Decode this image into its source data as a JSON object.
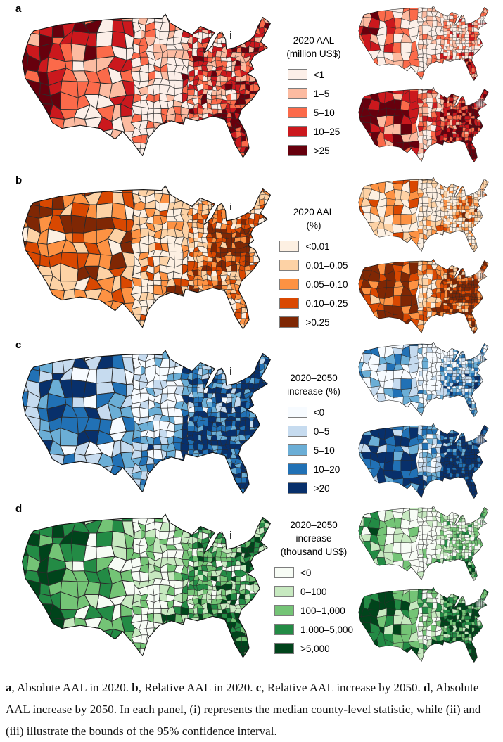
{
  "figure": {
    "panels": [
      {
        "letter": "a",
        "map_labels": [
          "i",
          "ii",
          "iii"
        ],
        "legend": {
          "title_lines": [
            "2020 AAL",
            "(million US$)"
          ],
          "classes": [
            {
              "label": "<1",
              "color": "#fcefe8"
            },
            {
              "label": "1–5",
              "color": "#fcbba1"
            },
            {
              "label": "5–10",
              "color": "#fb6a4a"
            },
            {
              "label": "10–25",
              "color": "#cb181d"
            },
            {
              "label": ">25",
              "color": "#67000d"
            }
          ]
        }
      },
      {
        "letter": "b",
        "map_labels": [
          "i",
          "ii",
          "iii"
        ],
        "legend": {
          "title_lines": [
            "2020 AAL",
            "(%)"
          ],
          "classes": [
            {
              "label": "<0.01",
              "color": "#fdf0e2"
            },
            {
              "label": "0.01–0.05",
              "color": "#fdd2a5"
            },
            {
              "label": "0.05–0.10",
              "color": "#fd9243"
            },
            {
              "label": "0.10–0.25",
              "color": "#d94801"
            },
            {
              "label": ">0.25",
              "color": "#7f2704"
            }
          ]
        }
      },
      {
        "letter": "c",
        "map_labels": [
          "i",
          "ii",
          "iii"
        ],
        "legend": {
          "title_lines": [
            "2020–2050",
            "increase (%)"
          ],
          "classes": [
            {
              "label": "<0",
              "color": "#f7fbff"
            },
            {
              "label": "0–5",
              "color": "#c6dbef"
            },
            {
              "label": "5–10",
              "color": "#6baed6"
            },
            {
              "label": "10–20",
              "color": "#2171b5"
            },
            {
              "label": ">20",
              "color": "#08306b"
            }
          ]
        }
      },
      {
        "letter": "d",
        "map_labels": [
          "i",
          "ii",
          "iii"
        ],
        "legend": {
          "title_lines": [
            "2020–2050",
            "increase",
            "(thousand US$)"
          ],
          "classes": [
            {
              "label": "<0",
              "color": "#f7fcf5"
            },
            {
              "label": "0–100",
              "color": "#c7e9c0"
            },
            {
              "label": "100–1,000",
              "color": "#74c476"
            },
            {
              "label": "1,000–5,000",
              "color": "#238b45"
            },
            {
              "label": ">5,000",
              "color": "#00441b"
            }
          ]
        }
      }
    ],
    "caption": [
      {
        "text": "a",
        "bold": true
      },
      {
        "text": ", Absolute AAL in 2020. ",
        "bold": false
      },
      {
        "text": "b",
        "bold": true
      },
      {
        "text": ", Relative AAL in 2020. ",
        "bold": false
      },
      {
        "text": "c",
        "bold": true
      },
      {
        "text": ", Relative AAL increase by 2050. ",
        "bold": false
      },
      {
        "text": "d",
        "bold": true
      },
      {
        "text": ", Absolute AAL increase by 2050. In each panel, (i) represents the median county-level statistic, while (ii) and (iii) illustrate the bounds of the 95% confidence interval.",
        "bold": false
      }
    ]
  },
  "chart_data": [
    {
      "type": "heatmap",
      "subtype": "choropleth_map",
      "panel": "a",
      "title": "2020 AAL (million US$)",
      "region": "Contiguous United States, county level",
      "classes": [
        "<1",
        "1–5",
        "5–10",
        "10–25",
        ">25"
      ],
      "colors": [
        "#fcefe8",
        "#fcbba1",
        "#fb6a4a",
        "#cb181d",
        "#67000d"
      ],
      "legend_position": "center-right of main map",
      "subpanels": [
        {
          "label": "i",
          "meaning": "median county-level statistic"
        },
        {
          "label": "ii",
          "meaning": "bound of the 95% confidence interval"
        },
        {
          "label": "iii",
          "meaning": "bound of the 95% confidence interval"
        }
      ]
    },
    {
      "type": "heatmap",
      "subtype": "choropleth_map",
      "panel": "b",
      "title": "2020 AAL (%)",
      "region": "Contiguous United States, county level",
      "classes": [
        "<0.01",
        "0.01–0.05",
        "0.05–0.10",
        "0.10–0.25",
        ">0.25"
      ],
      "colors": [
        "#fdf0e2",
        "#fdd2a5",
        "#fd9243",
        "#d94801",
        "#7f2704"
      ],
      "legend_position": "center-right of main map",
      "subpanels": [
        {
          "label": "i",
          "meaning": "median county-level statistic"
        },
        {
          "label": "ii",
          "meaning": "bound of the 95% confidence interval"
        },
        {
          "label": "iii",
          "meaning": "bound of the 95% confidence interval"
        }
      ]
    },
    {
      "type": "heatmap",
      "subtype": "choropleth_map",
      "panel": "c",
      "title": "2020–2050 increase (%)",
      "region": "Contiguous United States, county level",
      "classes": [
        "<0",
        "0–5",
        "5–10",
        "10–20",
        ">20"
      ],
      "colors": [
        "#f7fbff",
        "#c6dbef",
        "#6baed6",
        "#2171b5",
        "#08306b"
      ],
      "legend_position": "center-right of main map",
      "subpanels": [
        {
          "label": "i",
          "meaning": "median county-level statistic"
        },
        {
          "label": "ii",
          "meaning": "bound of the 95% confidence interval"
        },
        {
          "label": "iii",
          "meaning": "bound of the 95% confidence interval"
        }
      ]
    },
    {
      "type": "heatmap",
      "subtype": "choropleth_map",
      "panel": "d",
      "title": "2020–2050 increase (thousand US$)",
      "region": "Contiguous United States, county level",
      "classes": [
        "<0",
        "0–100",
        "100–1,000",
        "1,000–5,000",
        ">5,000"
      ],
      "colors": [
        "#f7fcf5",
        "#c7e9c0",
        "#74c476",
        "#238b45",
        "#00441b"
      ],
      "legend_position": "center-right of main map",
      "subpanels": [
        {
          "label": "i",
          "meaning": "median county-level statistic"
        },
        {
          "label": "ii",
          "meaning": "bound of the 95% confidence interval"
        },
        {
          "label": "iii",
          "meaning": "bound of the 95% confidence interval"
        }
      ]
    }
  ]
}
